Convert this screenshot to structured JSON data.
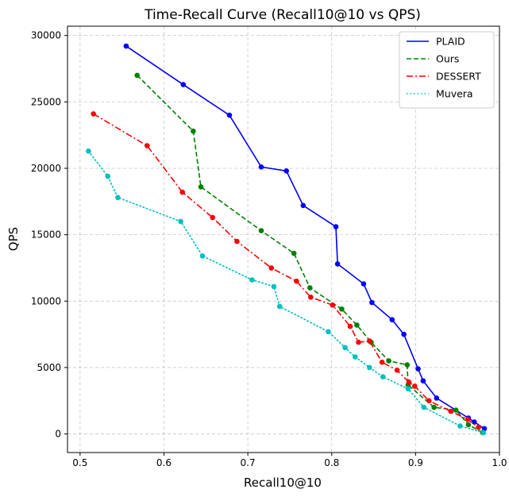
{
  "chart_data": {
    "type": "line",
    "title": "Time-Recall Curve (Recall10@10 vs QPS)",
    "xlabel": "Recall10@10",
    "ylabel": "QPS",
    "xlim": [
      0.485,
      1.0
    ],
    "ylim": [
      -1400,
      30700
    ],
    "xticks": [
      0.5,
      0.6,
      0.7,
      0.8,
      0.9,
      1.0
    ],
    "xtick_labels": [
      "0.5",
      "0.6",
      "0.7",
      "0.8",
      "0.9",
      "1.0"
    ],
    "yticks": [
      0,
      5000,
      10000,
      15000,
      20000,
      25000,
      30000
    ],
    "ytick_labels": [
      "0",
      "5000",
      "10000",
      "15000",
      "20000",
      "25000",
      "30000"
    ],
    "grid": true,
    "legend_position": "top-right",
    "series": [
      {
        "name": "PLAID",
        "color": "#0000ff",
        "line_style": "solid",
        "points": [
          [
            0.555,
            29200
          ],
          [
            0.623,
            26300
          ],
          [
            0.678,
            24000
          ],
          [
            0.716,
            20100
          ],
          [
            0.746,
            19800
          ],
          [
            0.766,
            17200
          ],
          [
            0.805,
            15600
          ],
          [
            0.807,
            12800
          ],
          [
            0.838,
            11300
          ],
          [
            0.848,
            9900
          ],
          [
            0.872,
            8600
          ],
          [
            0.886,
            7500
          ],
          [
            0.903,
            4900
          ],
          [
            0.909,
            4000
          ],
          [
            0.925,
            2700
          ],
          [
            0.963,
            1200
          ],
          [
            0.97,
            900
          ],
          [
            0.982,
            400
          ]
        ]
      },
      {
        "name": "Ours",
        "color": "#008000",
        "line_style": "dashed",
        "points": [
          [
            0.568,
            27000
          ],
          [
            0.635,
            22800
          ],
          [
            0.644,
            18600
          ],
          [
            0.716,
            15300
          ],
          [
            0.755,
            13600
          ],
          [
            0.774,
            11000
          ],
          [
            0.812,
            9400
          ],
          [
            0.83,
            8200
          ],
          [
            0.847,
            6900
          ],
          [
            0.868,
            5500
          ],
          [
            0.89,
            5200
          ],
          [
            0.891,
            3700
          ],
          [
            0.922,
            2000
          ],
          [
            0.948,
            1800
          ],
          [
            0.963,
            700
          ],
          [
            0.98,
            100
          ]
        ]
      },
      {
        "name": "DESSERT",
        "color": "#ff0000",
        "line_style": "dashdot",
        "points": [
          [
            0.516,
            24100
          ],
          [
            0.58,
            21700
          ],
          [
            0.622,
            18200
          ],
          [
            0.658,
            16300
          ],
          [
            0.687,
            14500
          ],
          [
            0.728,
            12500
          ],
          [
            0.758,
            11500
          ],
          [
            0.775,
            10300
          ],
          [
            0.801,
            9700
          ],
          [
            0.822,
            8100
          ],
          [
            0.832,
            6900
          ],
          [
            0.845,
            7000
          ],
          [
            0.86,
            5400
          ],
          [
            0.878,
            4800
          ],
          [
            0.892,
            3900
          ],
          [
            0.899,
            3600
          ],
          [
            0.916,
            2500
          ],
          [
            0.942,
            1700
          ],
          [
            0.962,
            1100
          ],
          [
            0.975,
            500
          ]
        ]
      },
      {
        "name": "Muvera",
        "color": "#00bfbf",
        "line_style": "dotted",
        "points": [
          [
            0.51,
            21300
          ],
          [
            0.533,
            19400
          ],
          [
            0.545,
            17800
          ],
          [
            0.62,
            16000
          ],
          [
            0.646,
            13400
          ],
          [
            0.705,
            11600
          ],
          [
            0.731,
            11100
          ],
          [
            0.738,
            9600
          ],
          [
            0.796,
            7700
          ],
          [
            0.816,
            6500
          ],
          [
            0.828,
            5800
          ],
          [
            0.845,
            5000
          ],
          [
            0.861,
            4300
          ],
          [
            0.891,
            3400
          ],
          [
            0.91,
            2000
          ],
          [
            0.953,
            600
          ],
          [
            0.981,
            100
          ]
        ]
      }
    ]
  }
}
